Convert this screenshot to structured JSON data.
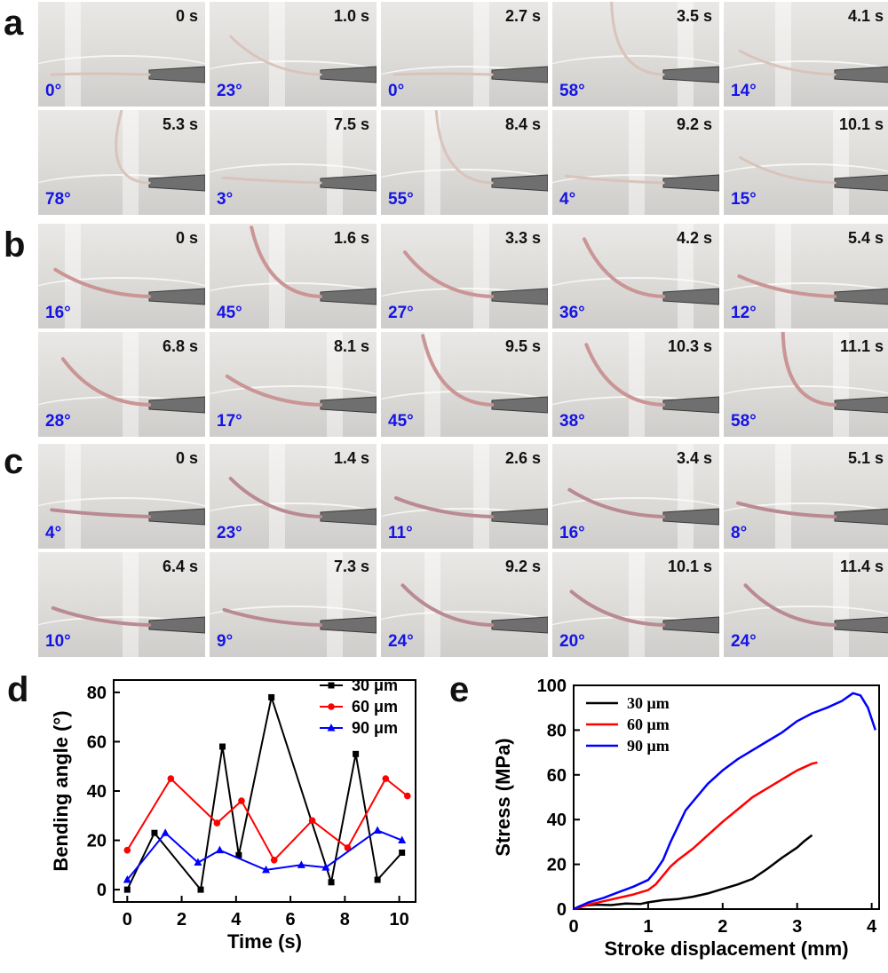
{
  "panels": {
    "a": {
      "letter": "a",
      "color": "#d9c4bb",
      "frames": [
        {
          "time": "0 s",
          "angle": "0°",
          "deg": 0
        },
        {
          "time": "1.0 s",
          "angle": "23°",
          "deg": 23
        },
        {
          "time": "2.7 s",
          "angle": "0°",
          "deg": 0
        },
        {
          "time": "3.5 s",
          "angle": "58°",
          "deg": 58
        },
        {
          "time": "4.1 s",
          "angle": "14°",
          "deg": 14
        },
        {
          "time": "5.3 s",
          "angle": "78°",
          "deg": 78
        },
        {
          "time": "7.5 s",
          "angle": "3°",
          "deg": 3
        },
        {
          "time": "8.4 s",
          "angle": "55°",
          "deg": 55
        },
        {
          "time": "9.2 s",
          "angle": "4°",
          "deg": 4
        },
        {
          "time": "10.1 s",
          "angle": "15°",
          "deg": 15
        }
      ]
    },
    "b": {
      "letter": "b",
      "color": "#c99595",
      "frames": [
        {
          "time": "0 s",
          "angle": "16°",
          "deg": 16
        },
        {
          "time": "1.6 s",
          "angle": "45°",
          "deg": 45
        },
        {
          "time": "3.3 s",
          "angle": "27°",
          "deg": 27
        },
        {
          "time": "4.2 s",
          "angle": "36°",
          "deg": 36
        },
        {
          "time": "5.4 s",
          "angle": "12°",
          "deg": 12
        },
        {
          "time": "6.8 s",
          "angle": "28°",
          "deg": 28
        },
        {
          "time": "8.1 s",
          "angle": "17°",
          "deg": 17
        },
        {
          "time": "9.5 s",
          "angle": "45°",
          "deg": 45
        },
        {
          "time": "10.3 s",
          "angle": "38°",
          "deg": 38
        },
        {
          "time": "11.1 s",
          "angle": "58°",
          "deg": 58
        }
      ]
    },
    "c": {
      "letter": "c",
      "color": "#b98a92",
      "frames": [
        {
          "time": "0 s",
          "angle": "4°",
          "deg": 4
        },
        {
          "time": "1.4 s",
          "angle": "23°",
          "deg": 23
        },
        {
          "time": "2.6 s",
          "angle": "11°",
          "deg": 11
        },
        {
          "time": "3.4 s",
          "angle": "16°",
          "deg": 16
        },
        {
          "time": "5.1 s",
          "angle": "8°",
          "deg": 8
        },
        {
          "time": "6.4 s",
          "angle": "10°",
          "deg": 10
        },
        {
          "time": "7.3 s",
          "angle": "9°",
          "deg": 9
        },
        {
          "time": "9.2 s",
          "angle": "24°",
          "deg": 24
        },
        {
          "time": "10.1 s",
          "angle": "20°",
          "deg": 20
        },
        {
          "time": "11.4 s",
          "angle": "24°",
          "deg": 24
        }
      ]
    }
  },
  "chart_data": [
    {
      "panel": "d",
      "type": "line",
      "xlabel": "Time (s)",
      "ylabel": "Bending angle (°)",
      "xlim": [
        -0.5,
        10.6
      ],
      "ylim": [
        -5,
        85
      ],
      "xticks": [
        0,
        2,
        4,
        6,
        8,
        10
      ],
      "yticks": [
        0,
        20,
        40,
        60,
        80
      ],
      "legend_position": "top-right",
      "series": [
        {
          "name": "30 μm",
          "color": "#000000",
          "marker": "square",
          "x": [
            0,
            1.0,
            2.7,
            3.5,
            4.1,
            5.3,
            7.5,
            8.4,
            9.2,
            10.1
          ],
          "y": [
            0,
            23,
            0,
            58,
            14,
            78,
            3,
            55,
            4,
            15
          ]
        },
        {
          "name": "60 μm",
          "color": "#ff0000",
          "marker": "circle",
          "x": [
            0,
            1.6,
            3.3,
            4.2,
            5.4,
            6.8,
            8.1,
            9.5,
            10.3
          ],
          "y": [
            16,
            45,
            27,
            36,
            12,
            28,
            17,
            45,
            38
          ]
        },
        {
          "name": "90 μm",
          "color": "#0000ff",
          "marker": "triangle",
          "x": [
            0,
            1.4,
            2.6,
            3.4,
            5.1,
            6.4,
            7.3,
            9.2,
            10.1
          ],
          "y": [
            4,
            23,
            11,
            16,
            8,
            10,
            9,
            24,
            20
          ]
        }
      ]
    },
    {
      "panel": "e",
      "type": "line",
      "xlabel": "Stroke displacement (mm)",
      "ylabel": "Stress (MPa)",
      "xlim": [
        0,
        4.1
      ],
      "ylim": [
        0,
        100
      ],
      "xticks": [
        0,
        1,
        2,
        3,
        4
      ],
      "yticks": [
        0,
        20,
        40,
        60,
        80,
        100
      ],
      "legend_position": "top-left",
      "series": [
        {
          "name": "30 μm",
          "color": "#000000",
          "x": [
            0,
            0.1,
            0.3,
            0.5,
            0.7,
            0.9,
            1.0,
            1.2,
            1.4,
            1.6,
            1.8,
            2.0,
            2.2,
            2.4,
            2.6,
            2.8,
            3.0,
            3.1,
            3.2
          ],
          "y": [
            0,
            1.5,
            2.0,
            1.8,
            2.5,
            2.3,
            3.0,
            4.0,
            4.5,
            5.5,
            7.0,
            9.0,
            11.0,
            13.5,
            18.0,
            23.0,
            27.5,
            30.5,
            33.0
          ]
        },
        {
          "name": "60 μm",
          "color": "#ff0000",
          "x": [
            0,
            0.2,
            0.4,
            0.6,
            0.8,
            1.0,
            1.1,
            1.2,
            1.3,
            1.4,
            1.6,
            1.8,
            2.0,
            2.2,
            2.4,
            2.6,
            2.8,
            3.0,
            3.2,
            3.27
          ],
          "y": [
            0,
            2.0,
            3.5,
            5.0,
            6.5,
            8.5,
            11.0,
            15.0,
            19.0,
            22.0,
            27.0,
            33.0,
            39.0,
            44.5,
            50.0,
            54.0,
            58.0,
            62.0,
            65.0,
            65.5
          ]
        },
        {
          "name": "90 μm",
          "color": "#0000ff",
          "x": [
            0,
            0.2,
            0.4,
            0.6,
            0.8,
            1.0,
            1.1,
            1.2,
            1.3,
            1.4,
            1.5,
            1.6,
            1.8,
            2.0,
            2.2,
            2.4,
            2.6,
            2.8,
            3.0,
            3.2,
            3.4,
            3.6,
            3.75,
            3.85,
            3.95,
            4.05
          ],
          "y": [
            0,
            3.0,
            5.0,
            7.5,
            10.0,
            13.0,
            17.0,
            22.0,
            30.0,
            37.0,
            44.0,
            48.0,
            56.0,
            62.0,
            67.0,
            71.0,
            75.0,
            79.0,
            84.0,
            87.5,
            90.0,
            93.0,
            96.5,
            95.5,
            90.0,
            80.0
          ]
        }
      ]
    }
  ]
}
